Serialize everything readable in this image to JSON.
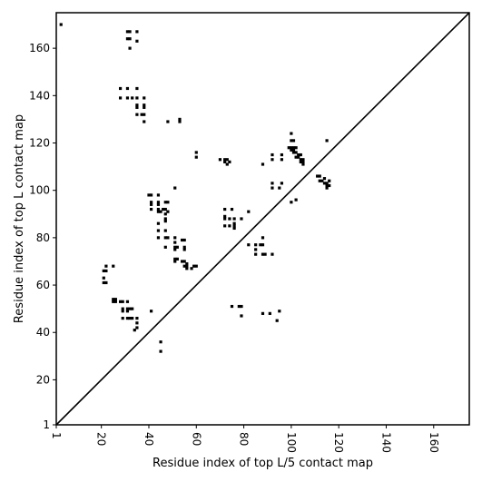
{
  "chart_data": {
    "type": "scatter",
    "xlabel": "Residue index of top L/5 contact map",
    "ylabel": "Residue index of top L contact map",
    "xlim": [
      1,
      175
    ],
    "ylim": [
      1,
      175
    ],
    "xticks": [
      1,
      20,
      40,
      60,
      80,
      100,
      120,
      140,
      160
    ],
    "yticks": [
      1,
      20,
      40,
      60,
      80,
      100,
      120,
      140,
      160
    ],
    "diagonal": true,
    "marker": "square",
    "color": "#000000",
    "points": [
      [
        3,
        170
      ],
      [
        31,
        167
      ],
      [
        32,
        167
      ],
      [
        35,
        167
      ],
      [
        31,
        164
      ],
      [
        32,
        164
      ],
      [
        35,
        163
      ],
      [
        32,
        160
      ],
      [
        28,
        143
      ],
      [
        31,
        143
      ],
      [
        35,
        143
      ],
      [
        28,
        139
      ],
      [
        31,
        139
      ],
      [
        33,
        139
      ],
      [
        35,
        139
      ],
      [
        38,
        139
      ],
      [
        35,
        136
      ],
      [
        35,
        135
      ],
      [
        38,
        136
      ],
      [
        38,
        135
      ],
      [
        35,
        132
      ],
      [
        37,
        132
      ],
      [
        38,
        132
      ],
      [
        38,
        129
      ],
      [
        48,
        129
      ],
      [
        53,
        130
      ],
      [
        53,
        129
      ],
      [
        60,
        116
      ],
      [
        60,
        114
      ],
      [
        70,
        113
      ],
      [
        72,
        113
      ],
      [
        73,
        113
      ],
      [
        74,
        112
      ],
      [
        72,
        112
      ],
      [
        73,
        111
      ],
      [
        92,
        115
      ],
      [
        92,
        113
      ],
      [
        96,
        115
      ],
      [
        96,
        113
      ],
      [
        88,
        111
      ],
      [
        100,
        124
      ],
      [
        100,
        121
      ],
      [
        101,
        121
      ],
      [
        99,
        118
      ],
      [
        100,
        118
      ],
      [
        101,
        118
      ],
      [
        102,
        118
      ],
      [
        100,
        117
      ],
      [
        101,
        117
      ],
      [
        101,
        116
      ],
      [
        102,
        116
      ],
      [
        103,
        115
      ],
      [
        104,
        115
      ],
      [
        102,
        114
      ],
      [
        103,
        114
      ],
      [
        104,
        113
      ],
      [
        105,
        113
      ],
      [
        104,
        112
      ],
      [
        105,
        112
      ],
      [
        105,
        111
      ],
      [
        115,
        121
      ],
      [
        92,
        103
      ],
      [
        92,
        101
      ],
      [
        95,
        101
      ],
      [
        96,
        103
      ],
      [
        51,
        101
      ],
      [
        111,
        106
      ],
      [
        112,
        106
      ],
      [
        114,
        105
      ],
      [
        112,
        104
      ],
      [
        113,
        104
      ],
      [
        114,
        103
      ],
      [
        115,
        103
      ],
      [
        115,
        102
      ],
      [
        116,
        102
      ],
      [
        116,
        104
      ],
      [
        115,
        101
      ],
      [
        100,
        95
      ],
      [
        102,
        96
      ],
      [
        40,
        98
      ],
      [
        41,
        98
      ],
      [
        44,
        98
      ],
      [
        41,
        95
      ],
      [
        44,
        95
      ],
      [
        47,
        95
      ],
      [
        48,
        95
      ],
      [
        41,
        94
      ],
      [
        44,
        94
      ],
      [
        41,
        92
      ],
      [
        44,
        92
      ],
      [
        46,
        92
      ],
      [
        47,
        92
      ],
      [
        48,
        91
      ],
      [
        44,
        91
      ],
      [
        45,
        91
      ],
      [
        47,
        90
      ],
      [
        47,
        88
      ],
      [
        47,
        87
      ],
      [
        44,
        86
      ],
      [
        44,
        83
      ],
      [
        47,
        83
      ],
      [
        44,
        80
      ],
      [
        47,
        80
      ],
      [
        48,
        80
      ],
      [
        51,
        80
      ],
      [
        54,
        79
      ],
      [
        55,
        79
      ],
      [
        51,
        78
      ],
      [
        47,
        76
      ],
      [
        51,
        76
      ],
      [
        52,
        76
      ],
      [
        55,
        76
      ],
      [
        51,
        75
      ],
      [
        55,
        75
      ],
      [
        51,
        71
      ],
      [
        52,
        71
      ],
      [
        51,
        70
      ],
      [
        54,
        70
      ],
      [
        55,
        70
      ],
      [
        56,
        69
      ],
      [
        55,
        68
      ],
      [
        56,
        68
      ],
      [
        59,
        68
      ],
      [
        60,
        68
      ],
      [
        56,
        67
      ],
      [
        58,
        67
      ],
      [
        72,
        92
      ],
      [
        75,
        92
      ],
      [
        72,
        89
      ],
      [
        72,
        88
      ],
      [
        74,
        88
      ],
      [
        76,
        88
      ],
      [
        76,
        86
      ],
      [
        72,
        85
      ],
      [
        74,
        85
      ],
      [
        76,
        85
      ],
      [
        76,
        84
      ],
      [
        79,
        88
      ],
      [
        82,
        91
      ],
      [
        82,
        77
      ],
      [
        85,
        77
      ],
      [
        85,
        75
      ],
      [
        87,
        77
      ],
      [
        88,
        80
      ],
      [
        88,
        77
      ],
      [
        85,
        73
      ],
      [
        88,
        73
      ],
      [
        89,
        73
      ],
      [
        92,
        73
      ],
      [
        22,
        68
      ],
      [
        25,
        68
      ],
      [
        21,
        66
      ],
      [
        22,
        66
      ],
      [
        21,
        63
      ],
      [
        21,
        61
      ],
      [
        22,
        61
      ],
      [
        25,
        54
      ],
      [
        26,
        54
      ],
      [
        25,
        53
      ],
      [
        26,
        53
      ],
      [
        28,
        53
      ],
      [
        29,
        53
      ],
      [
        31,
        53
      ],
      [
        29,
        50
      ],
      [
        31,
        50
      ],
      [
        32,
        50
      ],
      [
        33,
        50
      ],
      [
        29,
        49
      ],
      [
        31,
        49
      ],
      [
        29,
        46
      ],
      [
        31,
        46
      ],
      [
        32,
        46
      ],
      [
        33,
        46
      ],
      [
        35,
        46
      ],
      [
        35,
        44
      ],
      [
        35,
        42
      ],
      [
        34,
        41
      ],
      [
        41,
        49
      ],
      [
        75,
        51
      ],
      [
        78,
        51
      ],
      [
        79,
        51
      ],
      [
        79,
        47
      ],
      [
        88,
        48
      ],
      [
        91,
        48
      ],
      [
        95,
        49
      ],
      [
        94,
        45
      ],
      [
        45,
        36
      ],
      [
        45,
        32
      ]
    ]
  }
}
